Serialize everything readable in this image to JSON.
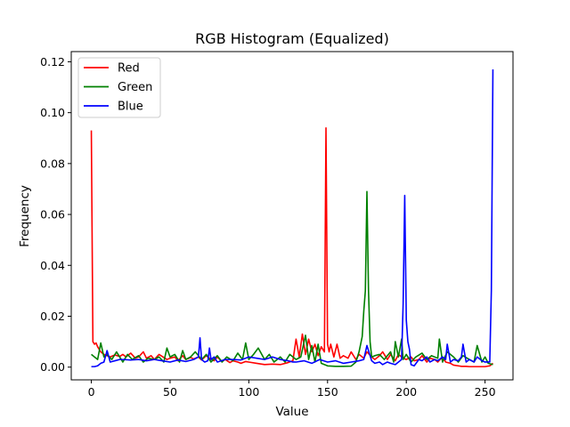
{
  "chart_data": {
    "type": "line",
    "title": "RGB Histogram (Equalized)",
    "xlabel": "Value",
    "ylabel": "Frequency",
    "xlim": [
      -12.75,
      267.75
    ],
    "ylim": [
      -0.005,
      0.124
    ],
    "xticks": [
      0,
      50,
      100,
      150,
      200,
      250
    ],
    "xtick_labels": [
      "0",
      "50",
      "100",
      "150",
      "200",
      "250"
    ],
    "yticks": [
      0.0,
      0.02,
      0.04,
      0.06,
      0.08,
      0.1,
      0.12
    ],
    "ytick_labels": [
      "0.00",
      "0.02",
      "0.04",
      "0.06",
      "0.08",
      "0.10",
      "0.12"
    ],
    "grid": false,
    "legend_position": "top-left",
    "series": [
      {
        "name": "Red",
        "color": "#ff0000",
        "x": [
          0,
          1,
          2,
          3,
          4,
          5,
          6,
          8,
          10,
          12,
          15,
          18,
          20,
          22,
          25,
          28,
          30,
          33,
          35,
          38,
          40,
          43,
          45,
          48,
          50,
          53,
          55,
          58,
          60,
          63,
          65,
          68,
          70,
          73,
          75,
          78,
          80,
          83,
          85,
          88,
          90,
          93,
          95,
          98,
          100,
          105,
          110,
          115,
          120,
          125,
          128,
          130,
          132,
          134,
          136,
          138,
          140,
          142,
          144,
          146,
          148,
          149,
          150,
          151,
          152,
          154,
          156,
          158,
          160,
          163,
          165,
          168,
          170,
          173,
          175,
          178,
          180,
          183,
          185,
          188,
          190,
          193,
          195,
          198,
          200,
          203,
          205,
          208,
          210,
          213,
          215,
          218,
          220,
          223,
          225,
          228,
          230,
          233,
          235,
          238,
          240,
          243,
          245,
          248,
          250,
          253,
          255
        ],
        "values": [
          0.093,
          0.01,
          0.009,
          0.0095,
          0.008,
          0.007,
          0.006,
          0.005,
          0.0045,
          0.004,
          0.0048,
          0.0042,
          0.005,
          0.004,
          0.0055,
          0.0035,
          0.004,
          0.006,
          0.0035,
          0.0045,
          0.003,
          0.005,
          0.0042,
          0.003,
          0.0035,
          0.004,
          0.0025,
          0.0045,
          0.003,
          0.0038,
          0.0032,
          0.004,
          0.0028,
          0.0045,
          0.0035,
          0.0025,
          0.004,
          0.0022,
          0.003,
          0.0018,
          0.0025,
          0.002,
          0.0015,
          0.0022,
          0.002,
          0.0015,
          0.001,
          0.0012,
          0.001,
          0.0018,
          0.0025,
          0.011,
          0.004,
          0.013,
          0.005,
          0.011,
          0.006,
          0.009,
          0.0045,
          0.008,
          0.006,
          0.094,
          0.009,
          0.006,
          0.009,
          0.004,
          0.009,
          0.0035,
          0.0045,
          0.0035,
          0.006,
          0.003,
          0.005,
          0.0035,
          0.006,
          0.004,
          0.003,
          0.0045,
          0.006,
          0.003,
          0.005,
          0.0025,
          0.005,
          0.0035,
          0.003,
          0.004,
          0.0025,
          0.003,
          0.0045,
          0.002,
          0.0035,
          0.003,
          0.002,
          0.004,
          0.002,
          0.0015,
          0.0008,
          0.0005,
          0.0003,
          0.0003,
          0.0002,
          0.0002,
          0.0002,
          0.0002,
          0.0002,
          0.0005,
          0.0015
        ]
      },
      {
        "name": "Green",
        "color": "#008000",
        "x": [
          0,
          2,
          4,
          6,
          8,
          10,
          13,
          16,
          20,
          23,
          26,
          30,
          33,
          36,
          40,
          43,
          46,
          48,
          50,
          53,
          56,
          58,
          60,
          63,
          66,
          70,
          73,
          76,
          80,
          83,
          86,
          90,
          93,
          96,
          98,
          100,
          103,
          106,
          110,
          113,
          116,
          120,
          123,
          126,
          130,
          133,
          136,
          138,
          140,
          142,
          144,
          146,
          150,
          155,
          160,
          165,
          168,
          170,
          172,
          173,
          174,
          175,
          176,
          177,
          178,
          180,
          183,
          186,
          190,
          192,
          193,
          195,
          197,
          198,
          200,
          203,
          206,
          210,
          213,
          216,
          220,
          221,
          223,
          226,
          230,
          233,
          236,
          240,
          243,
          245,
          248,
          250,
          252,
          255
        ],
        "values": [
          0.005,
          0.004,
          0.003,
          0.0095,
          0.004,
          0.005,
          0.003,
          0.006,
          0.002,
          0.005,
          0.003,
          0.0045,
          0.002,
          0.0035,
          0.003,
          0.004,
          0.002,
          0.0075,
          0.004,
          0.005,
          0.002,
          0.0065,
          0.003,
          0.004,
          0.006,
          0.003,
          0.005,
          0.002,
          0.0045,
          0.002,
          0.004,
          0.0025,
          0.0055,
          0.003,
          0.0095,
          0.003,
          0.005,
          0.0075,
          0.003,
          0.005,
          0.002,
          0.004,
          0.002,
          0.005,
          0.003,
          0.004,
          0.0125,
          0.003,
          0.0085,
          0.002,
          0.009,
          0.0015,
          0.0005,
          0.0003,
          0.0003,
          0.0004,
          0.002,
          0.006,
          0.012,
          0.022,
          0.03,
          0.069,
          0.03,
          0.01,
          0.004,
          0.0045,
          0.005,
          0.003,
          0.006,
          0.002,
          0.01,
          0.004,
          0.011,
          0.003,
          0.005,
          0.002,
          0.004,
          0.0055,
          0.003,
          0.0045,
          0.0035,
          0.011,
          0.002,
          0.006,
          0.004,
          0.002,
          0.0045,
          0.003,
          0.002,
          0.0085,
          0.002,
          0.004,
          0.0015,
          0.001
        ]
      },
      {
        "name": "Blue",
        "color": "#0000ff",
        "x": [
          0,
          2,
          4,
          6,
          8,
          10,
          12,
          15,
          18,
          20,
          25,
          30,
          35,
          40,
          45,
          50,
          55,
          60,
          65,
          68,
          69,
          70,
          72,
          74,
          75,
          76,
          78,
          80,
          85,
          90,
          95,
          100,
          105,
          110,
          115,
          120,
          125,
          128,
          130,
          135,
          140,
          145,
          150,
          155,
          160,
          165,
          170,
          173,
          175,
          178,
          180,
          183,
          185,
          188,
          190,
          193,
          195,
          197,
          198,
          199,
          200,
          201,
          202,
          203,
          205,
          208,
          210,
          213,
          215,
          218,
          220,
          223,
          225,
          226,
          228,
          230,
          233,
          235,
          236,
          238,
          240,
          243,
          245,
          248,
          250,
          252,
          253,
          254,
          255
        ],
        "values": [
          0.0002,
          0.0002,
          0.0005,
          0.0015,
          0.002,
          0.0065,
          0.002,
          0.0025,
          0.003,
          0.003,
          0.0028,
          0.003,
          0.0025,
          0.003,
          0.0025,
          0.002,
          0.0028,
          0.0022,
          0.003,
          0.004,
          0.0115,
          0.003,
          0.002,
          0.0025,
          0.0075,
          0.003,
          0.004,
          0.002,
          0.003,
          0.003,
          0.0028,
          0.004,
          0.0035,
          0.003,
          0.004,
          0.003,
          0.0025,
          0.002,
          0.002,
          0.0025,
          0.0015,
          0.003,
          0.002,
          0.0025,
          0.0015,
          0.002,
          0.0025,
          0.003,
          0.0085,
          0.0025,
          0.0015,
          0.002,
          0.001,
          0.002,
          0.0015,
          0.001,
          0.002,
          0.003,
          0.025,
          0.0675,
          0.0185,
          0.01,
          0.007,
          0.001,
          0.0005,
          0.003,
          0.0025,
          0.004,
          0.002,
          0.003,
          0.0025,
          0.004,
          0.003,
          0.009,
          0.002,
          0.003,
          0.0025,
          0.004,
          0.009,
          0.002,
          0.003,
          0.002,
          0.004,
          0.0025,
          0.002,
          0.002,
          0.002,
          0.03,
          0.117
        ]
      }
    ]
  }
}
